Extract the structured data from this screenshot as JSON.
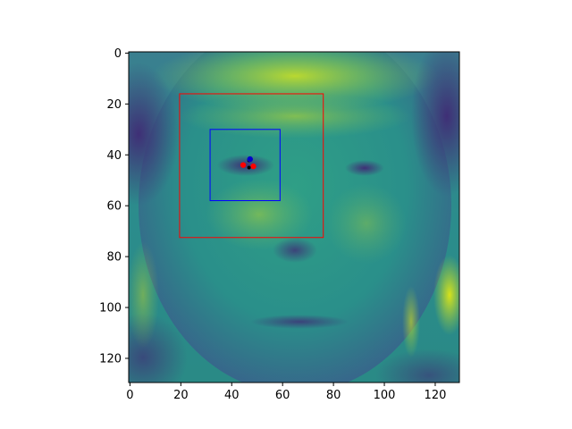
{
  "chart_data": {
    "type": "heatmap",
    "title": "",
    "xlabel": "",
    "ylabel": "",
    "image_extent": {
      "x": [
        -0.5,
        129.5
      ],
      "y": [
        129.5,
        -0.5
      ]
    },
    "xticks": [
      0,
      20,
      40,
      60,
      80,
      100,
      120
    ],
    "yticks": [
      0,
      20,
      40,
      60,
      80,
      100,
      120
    ],
    "y_inverted": true,
    "colormap": "viridis",
    "colors": {
      "outer_box": "#ff0000",
      "inner_box": "#0000ff",
      "points_red": "#ff0000",
      "points_blue": "#0000cc",
      "points_black": "#000000"
    },
    "rectangles": [
      {
        "name": "outer-box",
        "x0": 19.5,
        "y0": 16,
        "x1": 76,
        "y1": 72.5,
        "color": "#ff0000"
      },
      {
        "name": "inner-box",
        "x0": 31.5,
        "y0": 30,
        "x1": 59,
        "y1": 58,
        "color": "#0000ff"
      }
    ],
    "points": [
      {
        "x": 44.5,
        "y": 44,
        "color": "#ff0000"
      },
      {
        "x": 48.5,
        "y": 44.5,
        "color": "#ff0000"
      },
      {
        "x": 46.8,
        "y": 42.2,
        "color": "#000000"
      },
      {
        "x": 46.8,
        "y": 45,
        "color": "#000000"
      },
      {
        "x": 47.2,
        "y": 41.7,
        "color": "#0000cc"
      }
    ]
  }
}
